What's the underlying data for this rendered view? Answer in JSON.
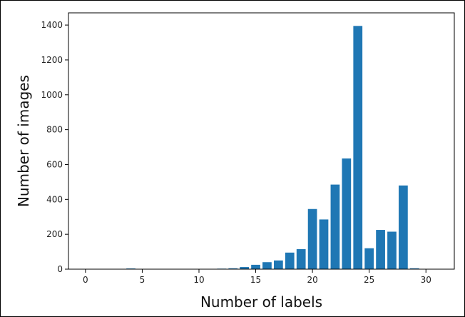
{
  "chart_data": {
    "type": "bar",
    "xlabel": "Number of labels",
    "ylabel": "Number of images",
    "xlim": [
      -1.5,
      32.5
    ],
    "ylim": [
      0,
      1470
    ],
    "xticks": [
      0,
      5,
      10,
      15,
      20,
      25,
      30
    ],
    "yticks": [
      0,
      200,
      400,
      600,
      800,
      1000,
      1200,
      1400
    ],
    "bar_color": "#1f77b4",
    "grid": false,
    "bars": [
      {
        "x": 0,
        "y": 0
      },
      {
        "x": 1,
        "y": 0
      },
      {
        "x": 2,
        "y": 0
      },
      {
        "x": 3,
        "y": 0
      },
      {
        "x": 4,
        "y": 4
      },
      {
        "x": 5,
        "y": 0
      },
      {
        "x": 6,
        "y": 0
      },
      {
        "x": 7,
        "y": 0
      },
      {
        "x": 8,
        "y": 0
      },
      {
        "x": 9,
        "y": 0
      },
      {
        "x": 10,
        "y": 0
      },
      {
        "x": 11,
        "y": 0
      },
      {
        "x": 12,
        "y": 3
      },
      {
        "x": 13,
        "y": 5
      },
      {
        "x": 14,
        "y": 12
      },
      {
        "x": 15,
        "y": 25
      },
      {
        "x": 16,
        "y": 40
      },
      {
        "x": 17,
        "y": 50
      },
      {
        "x": 18,
        "y": 95
      },
      {
        "x": 19,
        "y": 115
      },
      {
        "x": 20,
        "y": 345
      },
      {
        "x": 21,
        "y": 285
      },
      {
        "x": 22,
        "y": 485
      },
      {
        "x": 23,
        "y": 635
      },
      {
        "x": 24,
        "y": 1395
      },
      {
        "x": 25,
        "y": 120
      },
      {
        "x": 26,
        "y": 225
      },
      {
        "x": 27,
        "y": 215
      },
      {
        "x": 28,
        "y": 480
      },
      {
        "x": 29,
        "y": 5
      },
      {
        "x": 30,
        "y": 0
      },
      {
        "x": 31,
        "y": 0
      }
    ]
  }
}
